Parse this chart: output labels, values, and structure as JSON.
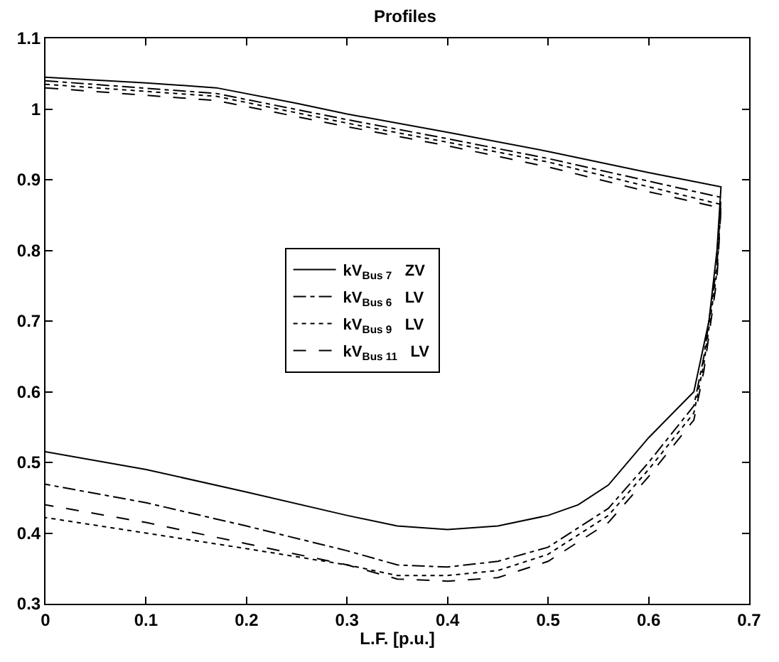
{
  "chart_data": {
    "type": "line",
    "title": "Profiles",
    "xlabel": "L.F. [p.u.]",
    "xlim": [
      0,
      0.7
    ],
    "xticks": [
      0,
      0.1,
      0.2,
      0.3,
      0.4,
      0.5,
      0.6,
      0.7
    ],
    "ylim": [
      0.3,
      1.1
    ],
    "yticks": [
      0.3,
      0.4,
      0.5,
      0.6,
      0.7,
      0.8,
      0.9,
      1,
      1.1
    ],
    "legend": "center",
    "marker": "none",
    "series": [
      {
        "name": "kV$_{Bus 7}$   ZV",
        "color": "#000000",
        "line_style": "solid",
        "x": [
          0,
          0.1,
          0.17,
          0.25,
          0.3,
          0.4,
          0.5,
          0.6,
          0.672,
          0.668,
          0.66,
          0.645,
          0.6,
          0.56,
          0.53,
          0.5,
          0.45,
          0.4,
          0.35,
          0.3,
          0.2,
          0.1,
          0
        ],
        "values": [
          1.045,
          1.037,
          1.03,
          1.008,
          0.993,
          0.967,
          0.94,
          0.91,
          0.89,
          0.8,
          0.7,
          0.6,
          0.535,
          0.468,
          0.44,
          0.425,
          0.41,
          0.405,
          0.41,
          0.425,
          0.458,
          0.49,
          0.515
        ]
      },
      {
        "name": "kV$_{Bus 6}$   LV",
        "color": "#000000",
        "line_style": "dashdot",
        "x": [
          0,
          0.17,
          0.3,
          0.4,
          0.5,
          0.6,
          0.672,
          0.668,
          0.655,
          0.645,
          0.6,
          0.56,
          0.5,
          0.45,
          0.4,
          0.35,
          0.3,
          0.2,
          0.1,
          0
        ],
        "values": [
          1.04,
          1.022,
          0.985,
          0.958,
          0.93,
          0.898,
          0.875,
          0.78,
          0.65,
          0.58,
          0.5,
          0.435,
          0.38,
          0.36,
          0.352,
          0.355,
          0.375,
          0.41,
          0.443,
          0.469
        ]
      },
      {
        "name": "kV$_{Bus 9}$   LV",
        "color": "#000000",
        "line_style": "dotted",
        "x": [
          0,
          0.17,
          0.3,
          0.4,
          0.5,
          0.6,
          0.672,
          0.668,
          0.655,
          0.645,
          0.6,
          0.56,
          0.5,
          0.45,
          0.4,
          0.35,
          0.3,
          0.2,
          0.1,
          0
        ],
        "values": [
          1.035,
          1.018,
          0.98,
          0.953,
          0.925,
          0.89,
          0.865,
          0.77,
          0.64,
          0.57,
          0.49,
          0.425,
          0.37,
          0.347,
          0.34,
          0.34,
          0.355,
          0.378,
          0.4,
          0.422
        ]
      },
      {
        "name": "kV$_{Bus 11}$   LV",
        "color": "#000000",
        "line_style": "dashed",
        "x": [
          0,
          0.17,
          0.3,
          0.4,
          0.5,
          0.6,
          0.672,
          0.668,
          0.655,
          0.645,
          0.6,
          0.56,
          0.5,
          0.45,
          0.4,
          0.35,
          0.3,
          0.2,
          0.1,
          0
        ],
        "values": [
          1.03,
          1.012,
          0.975,
          0.948,
          0.918,
          0.883,
          0.86,
          0.76,
          0.63,
          0.56,
          0.48,
          0.415,
          0.36,
          0.337,
          0.332,
          0.335,
          0.355,
          0.385,
          0.415,
          0.44
        ]
      }
    ]
  }
}
